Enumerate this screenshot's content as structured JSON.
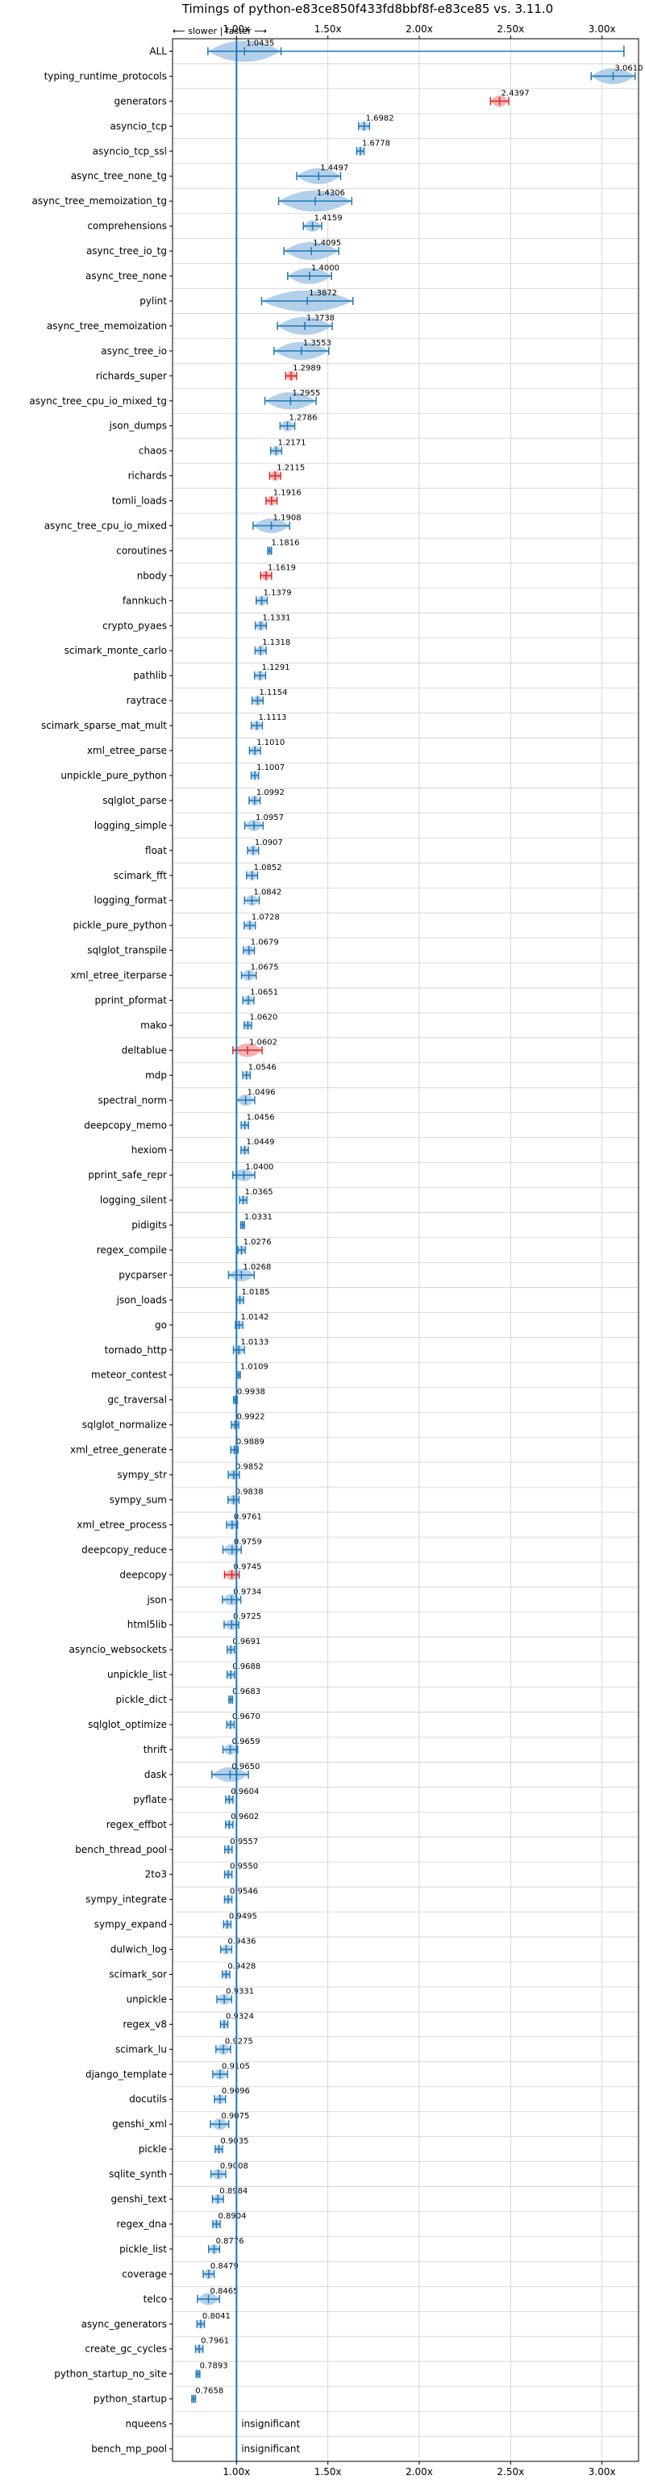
{
  "chart_data": {
    "type": "violin",
    "title": "Timings of python-e83ce850f433fd8bbf8f-e83ce85 vs. 3.11.0",
    "direction_note": "⟵ slower | faster ⟶",
    "xticks": [
      1.0,
      1.5,
      2.0,
      2.5,
      3.0
    ],
    "xtick_labels": [
      "1.00x",
      "1.50x",
      "2.00x",
      "2.50x",
      "3.00x"
    ],
    "xlim": [
      0.65,
      3.2
    ],
    "grid": true,
    "colors": {
      "faster": "#1f77b4",
      "slower": "#d62728",
      "body_fast": "#a6c8e6",
      "body_slow": "#f2a5a5"
    },
    "benchmarks": [
      {
        "name": "ALL",
        "value": 1.0435,
        "spread": 0.2
      },
      {
        "name": "typing_runtime_protocols",
        "value": 3.061,
        "spread": 0.12
      },
      {
        "name": "generators",
        "value": 2.4397,
        "spread": 0.05
      },
      {
        "name": "asyncio_tcp",
        "value": 1.6982,
        "spread": 0.03
      },
      {
        "name": "asyncio_tcp_ssl",
        "value": 1.6778,
        "spread": 0.02
      },
      {
        "name": "async_tree_none_tg",
        "value": 1.4497,
        "spread": 0.12
      },
      {
        "name": "async_tree_memoization_tg",
        "value": 1.4306,
        "spread": 0.2
      },
      {
        "name": "comprehensions",
        "value": 1.4159,
        "spread": 0.05
      },
      {
        "name": "async_tree_io_tg",
        "value": 1.4095,
        "spread": 0.15
      },
      {
        "name": "async_tree_none",
        "value": 1.4,
        "spread": 0.12
      },
      {
        "name": "pylint",
        "value": 1.3872,
        "spread": 0.25
      },
      {
        "name": "async_tree_memoization",
        "value": 1.3738,
        "spread": 0.15
      },
      {
        "name": "async_tree_io",
        "value": 1.3553,
        "spread": 0.15
      },
      {
        "name": "richards_super",
        "value": 1.2989,
        "spread": 0.03
      },
      {
        "name": "async_tree_cpu_io_mixed_tg",
        "value": 1.2955,
        "spread": 0.14
      },
      {
        "name": "json_dumps",
        "value": 1.2786,
        "spread": 0.04
      },
      {
        "name": "chaos",
        "value": 1.2171,
        "spread": 0.03
      },
      {
        "name": "richards",
        "value": 1.2115,
        "spread": 0.03
      },
      {
        "name": "tomli_loads",
        "value": 1.1916,
        "spread": 0.03
      },
      {
        "name": "async_tree_cpu_io_mixed",
        "value": 1.1908,
        "spread": 0.1
      },
      {
        "name": "coroutines",
        "value": 1.1816,
        "spread": 0.01
      },
      {
        "name": "nbody",
        "value": 1.1619,
        "spread": 0.03
      },
      {
        "name": "fannkuch",
        "value": 1.1379,
        "spread": 0.03
      },
      {
        "name": "crypto_pyaes",
        "value": 1.1331,
        "spread": 0.03
      },
      {
        "name": "scimark_monte_carlo",
        "value": 1.1318,
        "spread": 0.03
      },
      {
        "name": "pathlib",
        "value": 1.1291,
        "spread": 0.03
      },
      {
        "name": "raytrace",
        "value": 1.1154,
        "spread": 0.03
      },
      {
        "name": "scimark_sparse_mat_mult",
        "value": 1.1113,
        "spread": 0.03
      },
      {
        "name": "xml_etree_parse",
        "value": 1.101,
        "spread": 0.03
      },
      {
        "name": "unpickle_pure_python",
        "value": 1.1007,
        "spread": 0.02
      },
      {
        "name": "sqlglot_parse",
        "value": 1.0992,
        "spread": 0.03
      },
      {
        "name": "logging_simple",
        "value": 1.0957,
        "spread": 0.05
      },
      {
        "name": "float",
        "value": 1.0907,
        "spread": 0.03
      },
      {
        "name": "scimark_fft",
        "value": 1.0852,
        "spread": 0.03
      },
      {
        "name": "logging_format",
        "value": 1.0842,
        "spread": 0.04
      },
      {
        "name": "pickle_pure_python",
        "value": 1.0728,
        "spread": 0.03
      },
      {
        "name": "sqlglot_transpile",
        "value": 1.0679,
        "spread": 0.03
      },
      {
        "name": "xml_etree_iterparse",
        "value": 1.0675,
        "spread": 0.04
      },
      {
        "name": "pprint_pformat",
        "value": 1.0651,
        "spread": 0.03
      },
      {
        "name": "mako",
        "value": 1.062,
        "spread": 0.02
      },
      {
        "name": "deltablue",
        "value": 1.0602,
        "spread": 0.08
      },
      {
        "name": "mdp",
        "value": 1.0546,
        "spread": 0.02
      },
      {
        "name": "spectral_norm",
        "value": 1.0496,
        "spread": 0.05
      },
      {
        "name": "deepcopy_memo",
        "value": 1.0456,
        "spread": 0.02
      },
      {
        "name": "hexiom",
        "value": 1.0449,
        "spread": 0.02
      },
      {
        "name": "pprint_safe_repr",
        "value": 1.04,
        "spread": 0.06
      },
      {
        "name": "logging_silent",
        "value": 1.0365,
        "spread": 0.02
      },
      {
        "name": "pidigits",
        "value": 1.0331,
        "spread": 0.01
      },
      {
        "name": "regex_compile",
        "value": 1.0276,
        "spread": 0.02
      },
      {
        "name": "pycparser",
        "value": 1.0268,
        "spread": 0.07
      },
      {
        "name": "json_loads",
        "value": 1.0185,
        "spread": 0.02
      },
      {
        "name": "go",
        "value": 1.0142,
        "spread": 0.02
      },
      {
        "name": "tornado_http",
        "value": 1.0133,
        "spread": 0.03
      },
      {
        "name": "meteor_contest",
        "value": 1.0109,
        "spread": 0.01
      },
      {
        "name": "gc_traversal",
        "value": 0.9938,
        "spread": 0.01
      },
      {
        "name": "sqlglot_normalize",
        "value": 0.9922,
        "spread": 0.02
      },
      {
        "name": "xml_etree_generate",
        "value": 0.9889,
        "spread": 0.02
      },
      {
        "name": "sympy_str",
        "value": 0.9852,
        "spread": 0.03
      },
      {
        "name": "sympy_sum",
        "value": 0.9838,
        "spread": 0.03
      },
      {
        "name": "xml_etree_process",
        "value": 0.9761,
        "spread": 0.03
      },
      {
        "name": "deepcopy_reduce",
        "value": 0.9759,
        "spread": 0.05
      },
      {
        "name": "deepcopy",
        "value": 0.9745,
        "spread": 0.04
      },
      {
        "name": "json",
        "value": 0.9734,
        "spread": 0.05
      },
      {
        "name": "html5lib",
        "value": 0.9725,
        "spread": 0.04
      },
      {
        "name": "asyncio_websockets",
        "value": 0.9691,
        "spread": 0.02
      },
      {
        "name": "unpickle_list",
        "value": 0.9688,
        "spread": 0.02
      },
      {
        "name": "pickle_dict",
        "value": 0.9683,
        "spread": 0.01
      },
      {
        "name": "sqlglot_optimize",
        "value": 0.967,
        "spread": 0.02
      },
      {
        "name": "thrift",
        "value": 0.9659,
        "spread": 0.04
      },
      {
        "name": "dask",
        "value": 0.965,
        "spread": 0.1
      },
      {
        "name": "pyflate",
        "value": 0.9604,
        "spread": 0.02
      },
      {
        "name": "regex_effbot",
        "value": 0.9602,
        "spread": 0.02
      },
      {
        "name": "bench_thread_pool",
        "value": 0.9557,
        "spread": 0.02
      },
      {
        "name": "2to3",
        "value": 0.955,
        "spread": 0.02
      },
      {
        "name": "sympy_integrate",
        "value": 0.9546,
        "spread": 0.02
      },
      {
        "name": "sympy_expand",
        "value": 0.9495,
        "spread": 0.02
      },
      {
        "name": "dulwich_log",
        "value": 0.9436,
        "spread": 0.03
      },
      {
        "name": "scimark_sor",
        "value": 0.9428,
        "spread": 0.02
      },
      {
        "name": "unpickle",
        "value": 0.9331,
        "spread": 0.04
      },
      {
        "name": "regex_v8",
        "value": 0.9324,
        "spread": 0.02
      },
      {
        "name": "scimark_lu",
        "value": 0.9275,
        "spread": 0.04
      },
      {
        "name": "django_template",
        "value": 0.9105,
        "spread": 0.04
      },
      {
        "name": "docutils",
        "value": 0.9096,
        "spread": 0.03
      },
      {
        "name": "genshi_xml",
        "value": 0.9075,
        "spread": 0.05
      },
      {
        "name": "pickle",
        "value": 0.9035,
        "spread": 0.02
      },
      {
        "name": "sqlite_synth",
        "value": 0.9008,
        "spread": 0.04
      },
      {
        "name": "genshi_text",
        "value": 0.8984,
        "spread": 0.03
      },
      {
        "name": "regex_dna",
        "value": 0.8904,
        "spread": 0.02
      },
      {
        "name": "pickle_list",
        "value": 0.8776,
        "spread": 0.03
      },
      {
        "name": "coverage",
        "value": 0.8479,
        "spread": 0.03
      },
      {
        "name": "telco",
        "value": 0.8465,
        "spread": 0.06
      },
      {
        "name": "async_generators",
        "value": 0.8041,
        "spread": 0.02
      },
      {
        "name": "create_gc_cycles",
        "value": 0.7961,
        "spread": 0.02
      },
      {
        "name": "python_startup_no_site",
        "value": 0.7893,
        "spread": 0.01
      },
      {
        "name": "python_startup",
        "value": 0.7658,
        "spread": 0.01
      },
      {
        "name": "nqueens",
        "insignificant": true
      },
      {
        "name": "bench_mp_pool",
        "insignificant": true
      }
    ],
    "insignificant_label": "insignificant",
    "slower_highlight": [
      "generators",
      "richards_super",
      "richards",
      "tomli_loads",
      "nbody",
      "deltablue",
      "deepcopy"
    ]
  }
}
